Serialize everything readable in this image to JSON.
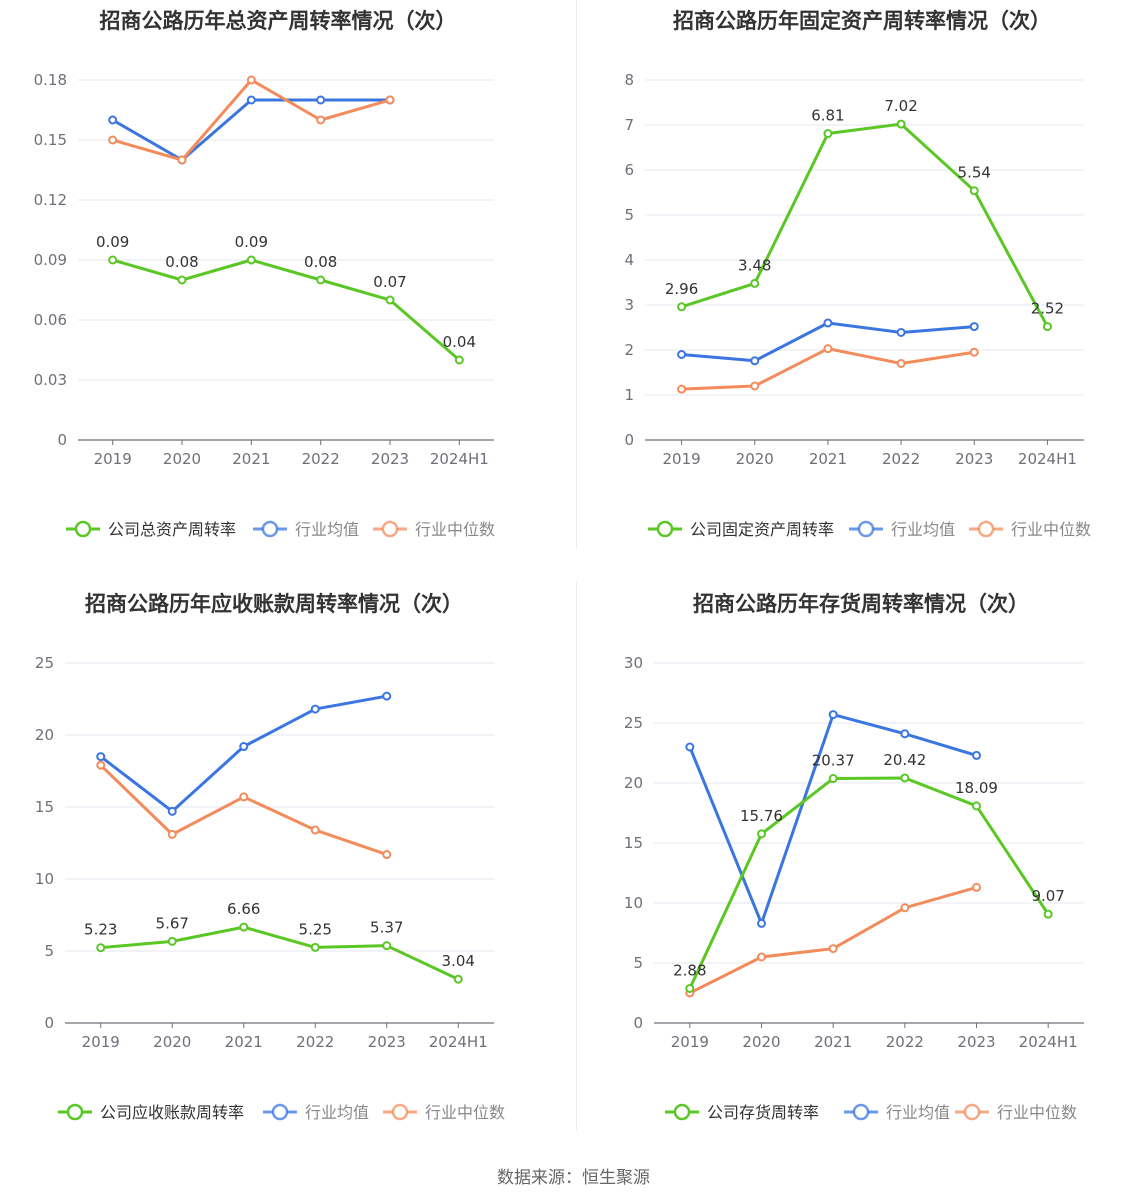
{
  "charts": [
    {
      "title": "招商公路历年总资产周转率情况（次）",
      "chart_data": {
        "type": "line",
        "categories": [
          "2019",
          "2020",
          "2021",
          "2022",
          "2023",
          "2024H1"
        ],
        "ylim": [
          0,
          0.18
        ],
        "yticks": [
          "0",
          "0.03",
          "0.06",
          "0.09",
          "0.12",
          "0.15",
          "0.18"
        ],
        "grid": true,
        "legend_position": "bottom",
        "series": [
          {
            "name": "公司总资产周转率",
            "color": "#5ac725",
            "labeled": true,
            "values": [
              0.09,
              0.08,
              0.09,
              0.08,
              0.07,
              0.04
            ],
            "labels": [
              "0.09",
              "0.08",
              "0.09",
              "0.08",
              "0.07",
              "0.04"
            ]
          },
          {
            "name": "行业均值",
            "color": "#3a75e0",
            "labeled": false,
            "values": [
              0.16,
              0.14,
              0.17,
              0.17,
              0.17,
              null
            ]
          },
          {
            "name": "行业中位数",
            "color": "#f28c5c",
            "labeled": false,
            "values": [
              0.15,
              0.14,
              0.18,
              0.16,
              0.17,
              null
            ]
          }
        ]
      }
    },
    {
      "title": "招商公路历年固定资产周转率情况（次）",
      "chart_data": {
        "type": "line",
        "categories": [
          "2019",
          "2020",
          "2021",
          "2022",
          "2023",
          "2024H1"
        ],
        "ylim": [
          0,
          8
        ],
        "yticks": [
          "0",
          "1",
          "2",
          "3",
          "4",
          "5",
          "6",
          "7",
          "8"
        ],
        "grid": true,
        "legend_position": "bottom",
        "series": [
          {
            "name": "公司固定资产周转率",
            "color": "#5ac725",
            "labeled": true,
            "values": [
              2.96,
              3.48,
              6.81,
              7.02,
              5.54,
              2.52
            ],
            "labels": [
              "2.96",
              "3.48",
              "6.81",
              "7.02",
              "5.54",
              "2.52"
            ]
          },
          {
            "name": "行业均值",
            "color": "#3a75e0",
            "labeled": false,
            "values": [
              1.9,
              1.76,
              2.6,
              2.39,
              2.52,
              null
            ]
          },
          {
            "name": "行业中位数",
            "color": "#f28c5c",
            "labeled": false,
            "values": [
              1.13,
              1.2,
              2.03,
              1.7,
              1.95,
              null
            ]
          }
        ]
      }
    },
    {
      "title": "招商公路历年应收账款周转率情况（次）",
      "chart_data": {
        "type": "line",
        "categories": [
          "2019",
          "2020",
          "2021",
          "2022",
          "2023",
          "2024H1"
        ],
        "ylim": [
          0,
          25
        ],
        "yticks": [
          "0",
          "5",
          "10",
          "15",
          "20",
          "25"
        ],
        "grid": true,
        "legend_position": "bottom",
        "series": [
          {
            "name": "公司应收账款周转率",
            "color": "#5ac725",
            "labeled": true,
            "values": [
              5.23,
              5.67,
              6.66,
              5.25,
              5.37,
              3.04
            ],
            "labels": [
              "5.23",
              "5.67",
              "6.66",
              "5.25",
              "5.37",
              "3.04"
            ]
          },
          {
            "name": "行业均值",
            "color": "#3a75e0",
            "labeled": false,
            "values": [
              18.5,
              14.7,
              19.2,
              21.8,
              22.7,
              null
            ]
          },
          {
            "name": "行业中位数",
            "color": "#f28c5c",
            "labeled": false,
            "values": [
              17.9,
              13.1,
              15.7,
              13.4,
              11.7,
              null
            ]
          }
        ]
      }
    },
    {
      "title": "招商公路历年存货周转率情况（次）",
      "chart_data": {
        "type": "line",
        "categories": [
          "2019",
          "2020",
          "2021",
          "2022",
          "2023",
          "2024H1"
        ],
        "ylim": [
          0,
          30
        ],
        "yticks": [
          "0",
          "5",
          "10",
          "15",
          "20",
          "25",
          "30"
        ],
        "grid": true,
        "legend_position": "bottom",
        "series": [
          {
            "name": "公司存货周转率",
            "color": "#5ac725",
            "labeled": true,
            "values": [
              2.88,
              15.76,
              20.37,
              20.42,
              18.09,
              9.07
            ],
            "labels": [
              "2.88",
              "15.76",
              "20.37",
              "20.42",
              "18.09",
              "9.07"
            ]
          },
          {
            "name": "行业均值",
            "color": "#3a75e0",
            "labeled": false,
            "values": [
              23.0,
              8.3,
              25.7,
              24.1,
              22.3,
              null
            ]
          },
          {
            "name": "行业中位数",
            "color": "#f28c5c",
            "labeled": false,
            "values": [
              2.5,
              5.5,
              6.2,
              9.6,
              11.3,
              null
            ]
          }
        ]
      }
    }
  ],
  "footer": {
    "source": "数据来源：恒生聚源"
  }
}
